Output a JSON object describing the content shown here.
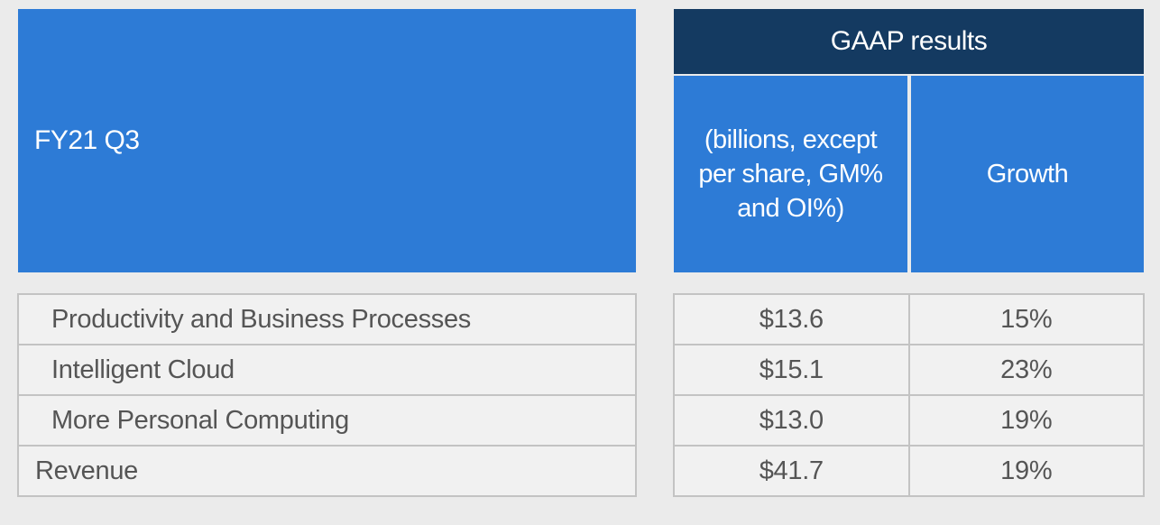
{
  "title": "FY21 Q3",
  "header": {
    "gaap": "GAAP results",
    "units": "(billions, except per share, GM% and OI%)",
    "growth": "Growth"
  },
  "rows": [
    {
      "label": "Productivity and Business Processes",
      "value": "$13.6",
      "growth": "15%",
      "indented": true
    },
    {
      "label": "Intelligent Cloud",
      "value": "$15.1",
      "growth": "23%",
      "indented": true
    },
    {
      "label": "More Personal Computing",
      "value": "$13.0",
      "growth": "19%",
      "indented": true
    },
    {
      "label": "Revenue",
      "value": "$41.7",
      "growth": "19%",
      "indented": false
    }
  ]
}
